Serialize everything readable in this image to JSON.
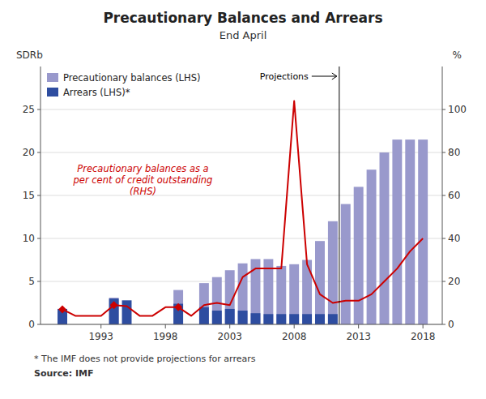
{
  "chart_data": {
    "type": "bar",
    "title": "Precautionary Balances and Arrears",
    "subtitle": "End April",
    "ylabel": "SDRb",
    "y2label": "%",
    "xlim": [
      1988.3,
      2019.5
    ],
    "xticks": [
      1993,
      1998,
      2003,
      2008,
      2013,
      2018
    ],
    "ylim": [
      0,
      30
    ],
    "yticks": [
      0,
      5,
      10,
      15,
      20,
      25
    ],
    "y2lim": [
      0,
      120
    ],
    "y2ticks": [
      0,
      20,
      40,
      60,
      80,
      100
    ],
    "grid": true,
    "legend": "upper left",
    "series": [
      {
        "name": "Precautionary balances (LHS)",
        "type": "bar",
        "color": "#9999CC",
        "x": [
          1990,
          1994,
          1999,
          2001,
          2002,
          2003,
          2004,
          2005,
          2006,
          2007,
          2008,
          2009,
          2010,
          2011,
          2012,
          2013,
          2014,
          2015,
          2016,
          2017,
          2018
        ],
        "values": [
          1.5,
          3.1,
          4.0,
          4.8,
          5.5,
          6.3,
          7.1,
          7.6,
          7.6,
          6.8,
          7.0,
          7.5,
          9.7,
          12.0,
          14.0,
          16.0,
          18.0,
          20.0,
          21.5,
          21.5,
          21.5
        ]
      },
      {
        "name": "Arrears (LHS)*",
        "type": "bar",
        "color": "#2E4DA0",
        "x": [
          1990,
          1994,
          1995,
          1999,
          2001,
          2002,
          2003,
          2004,
          2005,
          2006,
          2007,
          2008,
          2009,
          2010,
          2011
        ],
        "values": [
          1.8,
          3.0,
          2.8,
          2.4,
          2.0,
          1.6,
          1.8,
          1.6,
          1.3,
          1.2,
          1.2,
          1.2,
          1.2,
          1.2,
          1.2
        ]
      },
      {
        "type": "line",
        "axis": "y2",
        "color": "#CC0000",
        "x": [
          1990,
          1991,
          1992,
          1993,
          1994,
          1995,
          1996,
          1997,
          1998,
          1999,
          2000,
          2001,
          2002,
          2003,
          2004,
          2005,
          2006,
          2007,
          2008,
          2009,
          2010,
          2011,
          2012,
          2013,
          2014,
          2015,
          2016,
          2017,
          2018
        ],
        "values": [
          7.0,
          4.0,
          4.0,
          4.0,
          9.0,
          8.5,
          4.0,
          4.0,
          8.0,
          8.0,
          4.0,
          9.0,
          10.0,
          9.0,
          22.0,
          26.0,
          26.0,
          26.0,
          104.0,
          28.0,
          14.0,
          10.0,
          11.0,
          11.0,
          14.0,
          20.0,
          26.0,
          34.0,
          40.0
        ]
      },
      {
        "type": "scatter",
        "axis": "y2",
        "color": "#CC0000",
        "marker": "diamond",
        "line_style": "none",
        "x": [
          1990,
          1994,
          1999
        ],
        "values": [
          7.0,
          9.0,
          8.0
        ]
      }
    ],
    "annotations": [
      {
        "text": "Projections",
        "x": 2011.5
      },
      {
        "text": "Precautionary balances as a\nper cent of credit outstanding\n(RHS)",
        "color": "#CC0000"
      }
    ],
    "footnotes": [
      "*   The IMF does not provide projections for arrears",
      "Source: IMF"
    ]
  }
}
